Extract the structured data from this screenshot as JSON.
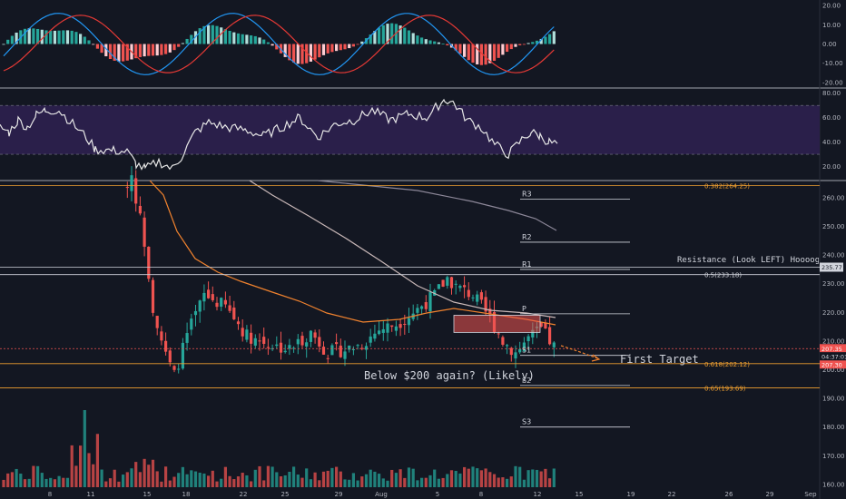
{
  "chart_data": {
    "type": "candlestick",
    "price_axis": {
      "ticks": [
        "260.00",
        "250.00",
        "240.00",
        "230.00",
        "220.00",
        "210.00",
        "200.00",
        "190.00",
        "180.00",
        "170.00",
        "160.00"
      ],
      "range": [
        159,
        266
      ]
    },
    "time_axis": {
      "labels": [
        "8",
        "11",
        "15",
        "18",
        "22",
        "25",
        "29",
        "Aug",
        "5",
        "8",
        "12",
        "15",
        "19",
        "22",
        "26",
        "29",
        "Sep"
      ]
    },
    "macd_axis": {
      "ticks": [
        "20.00",
        "10.00",
        "0.00",
        "-10.00",
        "-20.00"
      ],
      "range": [
        -22,
        22
      ]
    },
    "rsi_axis": {
      "ticks": [
        "80.00",
        "60.00",
        "40.00",
        "20.00"
      ],
      "range": [
        10,
        82
      ],
      "band": [
        30,
        70
      ]
    },
    "fib_levels": [
      {
        "label": "0.382(264.25)",
        "value": 264.25,
        "color": "#f0a030"
      },
      {
        "label": "0.5(233.18)",
        "value": 233.18,
        "color": "#d1d4dc"
      },
      {
        "label": "0.618(202.12)",
        "value": 202.12,
        "color": "#f0a030"
      },
      {
        "label": "0.65(193.69)",
        "value": 193.69,
        "color": "#f0a030"
      }
    ],
    "pivots": [
      {
        "label": "R3",
        "value": 259.5
      },
      {
        "label": "R2",
        "value": 244.5
      },
      {
        "label": "R1",
        "value": 235.0
      },
      {
        "label": "P",
        "value": 219.5
      },
      {
        "label": "S1",
        "value": 205.0
      },
      {
        "label": "S2",
        "value": 194.5
      },
      {
        "label": "S3",
        "value": 180.0
      }
    ],
    "resistance_level": 235.77,
    "current_price": {
      "last": "207.35",
      "countdown": "04:37:01",
      "prev": "207.30"
    },
    "annotations": {
      "resistance": "Resistance  (Look LEFT) Hoooogeeeeee",
      "target": "First Target",
      "below": "Below $200 again? (Likely)"
    },
    "resistance_price_label": "235.77",
    "colors": {
      "up": "#26a69a",
      "down": "#ef5350",
      "bg": "#131722",
      "grid": "#2a2e39",
      "fib": "#f0a030",
      "rsi_band": "#2a1f4a"
    }
  }
}
